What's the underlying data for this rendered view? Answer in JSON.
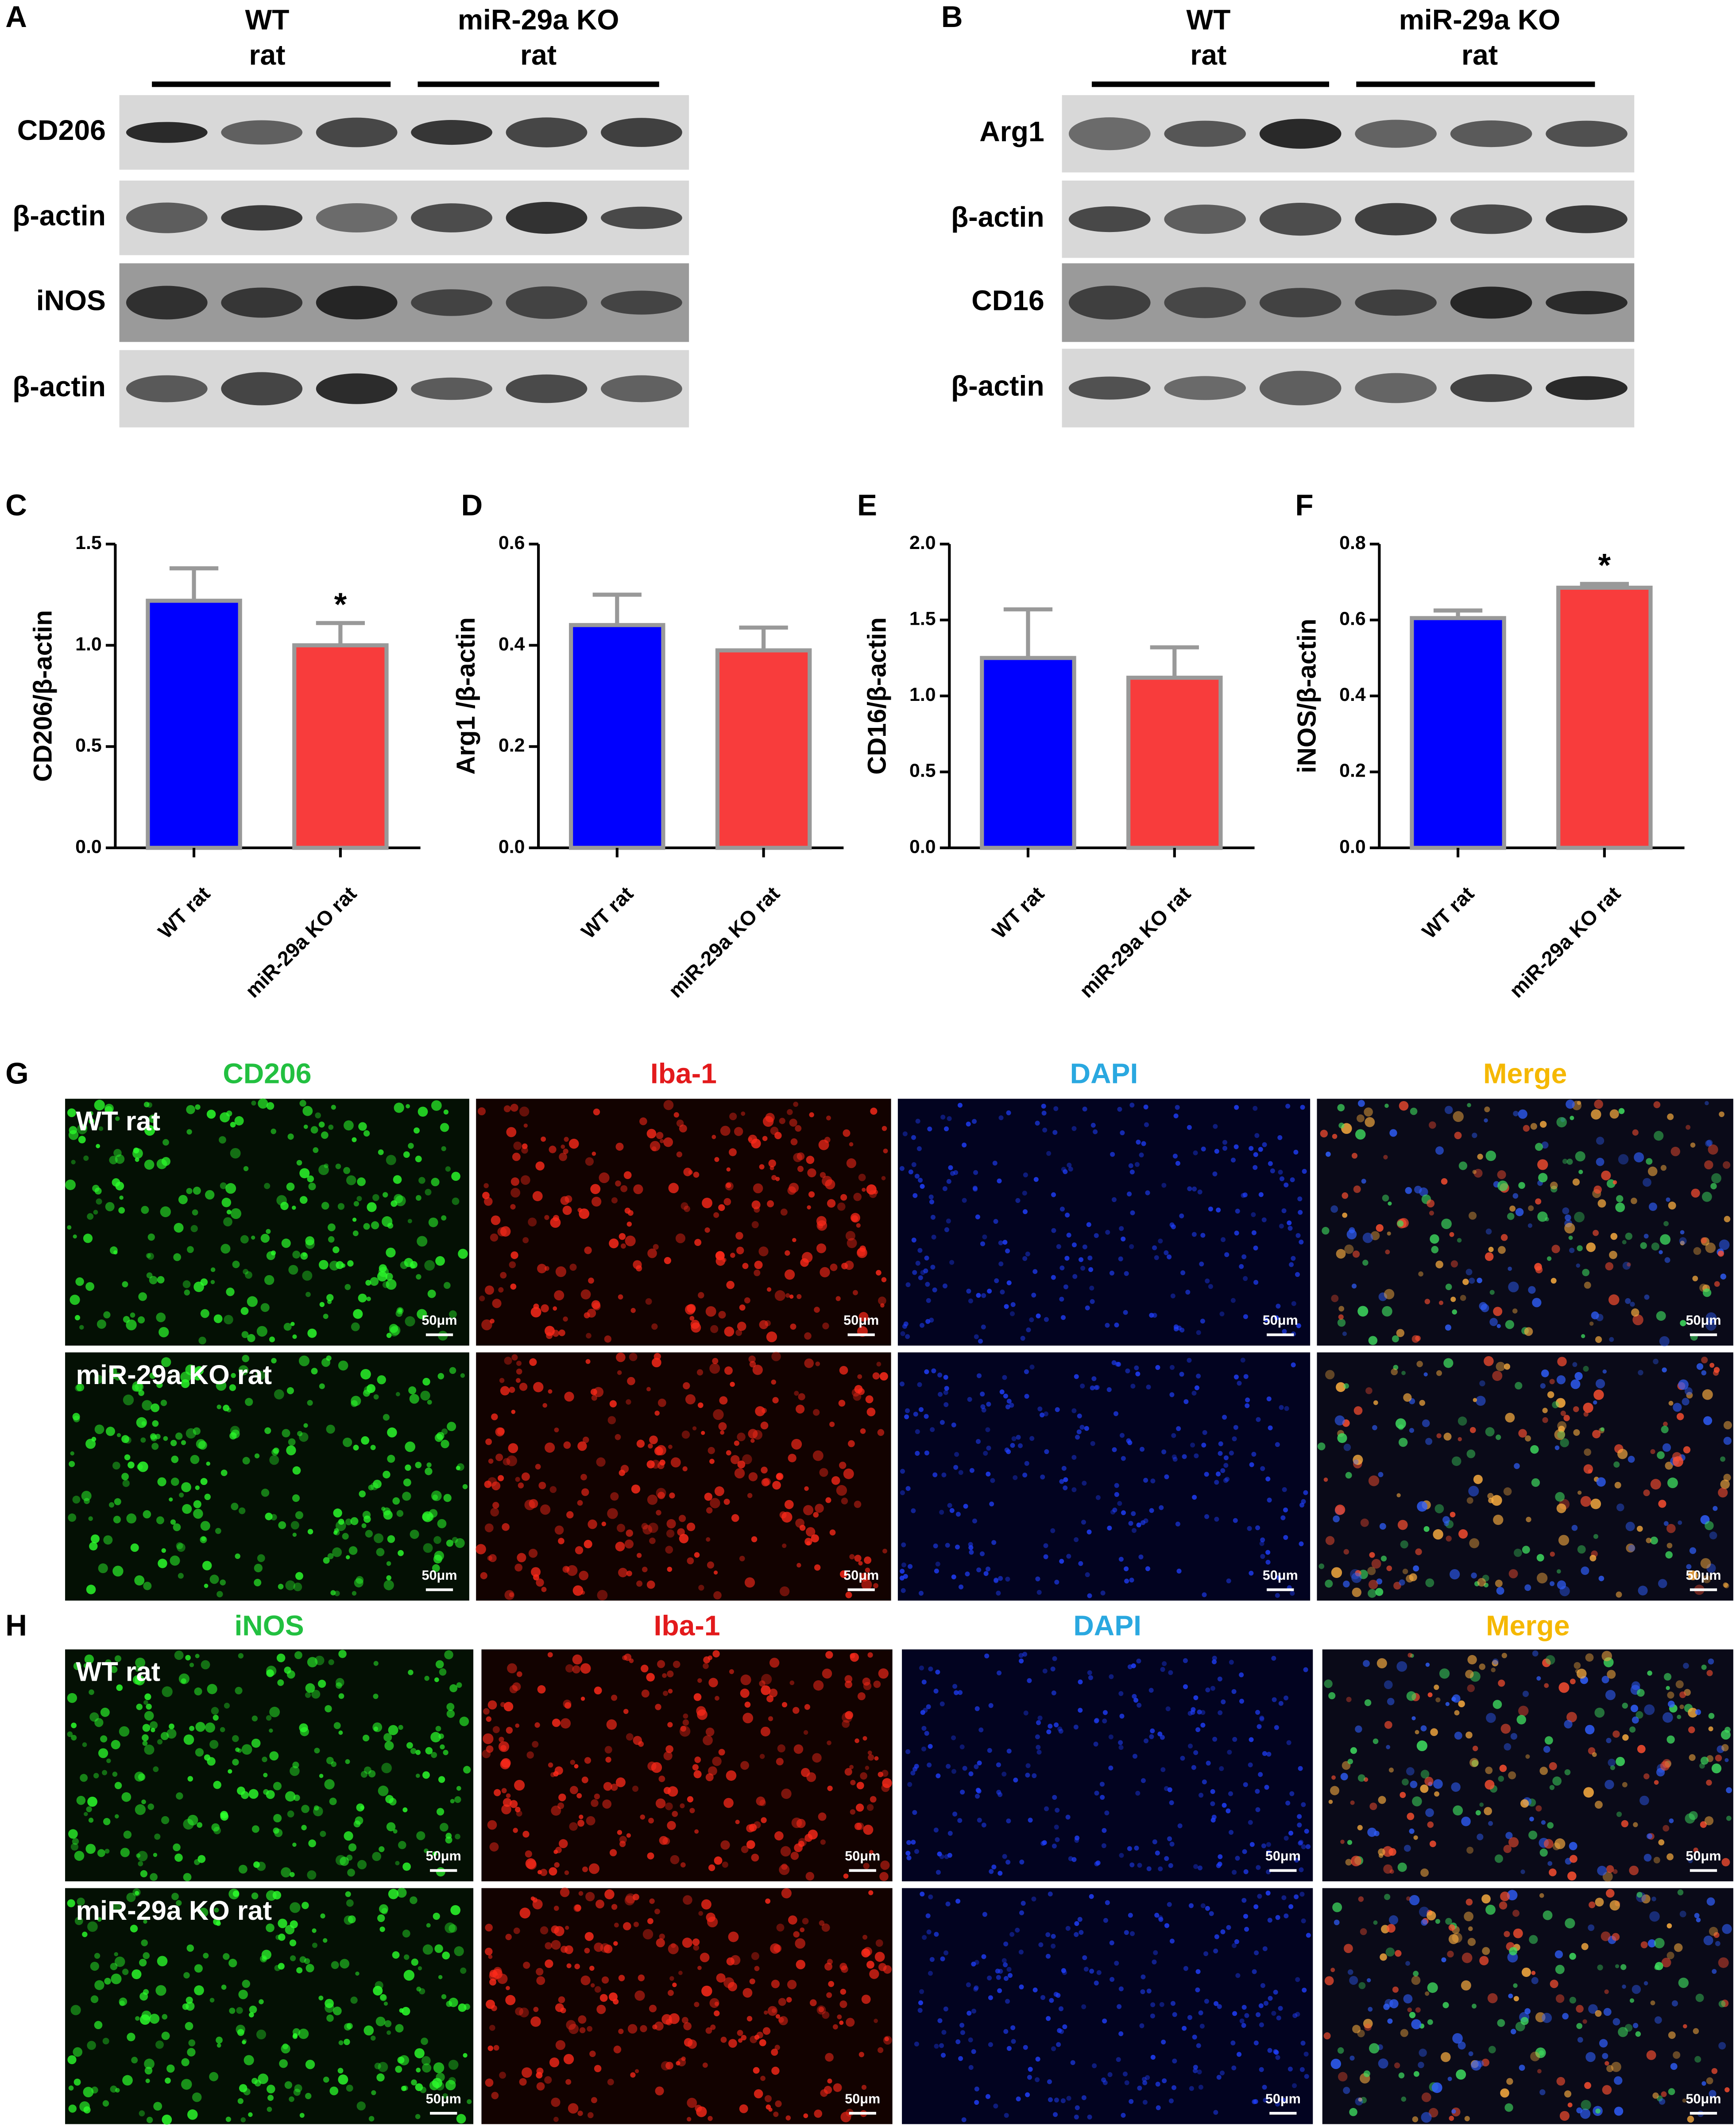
{
  "panels": [
    "A",
    "B",
    "C",
    "D",
    "E",
    "F",
    "G",
    "H"
  ],
  "blot_a": {
    "groups": [
      [
        "WT",
        "rat"
      ],
      [
        "miR-29a KO",
        "rat"
      ]
    ],
    "rows": [
      "CD206",
      "β-actin",
      "iNOS",
      "β-actin"
    ]
  },
  "blot_b": {
    "groups": [
      [
        "WT",
        "rat"
      ],
      [
        "miR-29a KO",
        "rat"
      ]
    ],
    "rows": [
      "Arg1",
      "β-actin",
      "CD16",
      "β-actin"
    ]
  },
  "chart_data": [
    {
      "type": "bar",
      "y_label": "CD206/β-actin",
      "categories": [
        "WT rat",
        "miR-29a KO rat"
      ],
      "values": [
        1.22,
        1.0
      ],
      "errors": [
        0.16,
        0.11
      ],
      "colors": [
        "#0000ff",
        "#f83c3c"
      ],
      "value_annotations": [
        null,
        "*"
      ],
      "ylim": [
        0,
        1.5
      ],
      "yticks": [
        {
          "value": 0,
          "label": "0.0"
        },
        0.5,
        {
          "value": 1,
          "label": "1.0"
        },
        1.5
      ]
    },
    {
      "type": "bar",
      "y_label": "Arg1 /β-actin",
      "categories": [
        "WT rat",
        "miR-29a KO rat"
      ],
      "values": [
        0.44,
        0.39
      ],
      "errors": [
        0.06,
        0.045
      ],
      "colors": [
        "#0000ff",
        "#f83c3c"
      ],
      "ylim": [
        0,
        0.6
      ],
      "yticks": [
        {
          "value": 0,
          "label": "0.0"
        },
        0.2,
        0.4,
        0.6
      ]
    },
    {
      "type": "bar",
      "y_label": "CD16/β-actin",
      "categories": [
        "WT rat",
        "miR-29a KO rat"
      ],
      "values": [
        1.25,
        1.12
      ],
      "errors": [
        0.32,
        0.2
      ],
      "colors": [
        "#0000ff",
        "#f83c3c"
      ],
      "ylim": [
        0,
        2
      ],
      "yticks": [
        {
          "value": 0,
          "label": "0.0"
        },
        0.5,
        {
          "value": 1,
          "label": "1.0"
        },
        1.5,
        {
          "value": 2,
          "label": "2.0"
        }
      ]
    },
    {
      "type": "bar",
      "y_label": "iNOS/β-actin",
      "categories": [
        "WT rat",
        "miR-29a KO rat"
      ],
      "values": [
        0.605,
        0.685
      ],
      "errors": [
        0.02,
        0.01
      ],
      "colors": [
        "#0000ff",
        "#f83c3c"
      ],
      "value_annotations": [
        null,
        "*"
      ],
      "ylim": [
        0,
        0.8
      ],
      "yticks": [
        {
          "value": 0,
          "label": "0.0"
        },
        0.2,
        0.4,
        0.6,
        0.8
      ]
    }
  ],
  "micro_g": {
    "columns": [
      "CD206",
      "Iba-1",
      "DAPI",
      "Merge"
    ],
    "rows": [
      "WT rat",
      "miR-29a KO rat"
    ]
  },
  "micro_h": {
    "columns": [
      "iNOS",
      "Iba-1",
      "DAPI",
      "Merge"
    ],
    "rows": [
      "WT rat",
      "miR-29a KO rat"
    ]
  },
  "scale_bar": "50μm"
}
